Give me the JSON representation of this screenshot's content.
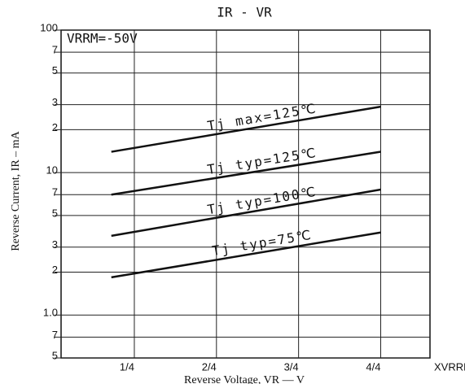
{
  "chart_data": {
    "type": "line",
    "title": "IR - VR",
    "x_label": "Reverse Voltage, VR — V",
    "y_label": "Reverse Current, IR – mA",
    "x_unit": "XVRRM",
    "annotation": "VRRM=-50V",
    "log_y": true,
    "grid": true,
    "xlim": [
      0.027,
      1.15
    ],
    "ylim": [
      0.5,
      100
    ],
    "xticks": [
      {
        "value": 0.25,
        "label": "1/4"
      },
      {
        "value": 0.5,
        "label": "2/4"
      },
      {
        "value": 0.75,
        "label": "3/4"
      },
      {
        "value": 1,
        "label": "4/4"
      }
    ],
    "yticks": [
      100,
      {
        "value": 70,
        "label": "7"
      },
      {
        "value": 50,
        "label": "5"
      },
      {
        "value": 30,
        "label": "3"
      },
      {
        "value": 20,
        "label": "2"
      },
      10,
      {
        "value": 7,
        "label": "7"
      },
      {
        "value": 5,
        "label": "5"
      },
      {
        "value": 3,
        "label": "3"
      },
      {
        "value": 2,
        "label": "2"
      },
      {
        "value": 1,
        "label": "1.0"
      },
      {
        "value": 0.7,
        "label": "7"
      },
      {
        "value": 0.5,
        "label": "5"
      }
    ],
    "series": [
      {
        "name": "Tj max=125℃",
        "color": "#111111",
        "x": [
          0.18,
          1
        ],
        "values": [
          14,
          29
        ]
      },
      {
        "name": "Tj typ=125℃",
        "color": "#111111",
        "x": [
          0.18,
          1
        ],
        "values": [
          7,
          14
        ]
      },
      {
        "name": "Tj typ=100℃",
        "color": "#111111",
        "x": [
          0.18,
          1
        ],
        "values": [
          3.6,
          7.6
        ]
      },
      {
        "name": "Tj typ=75℃",
        "color": "#111111",
        "x": [
          0.18,
          1
        ],
        "values": [
          1.84,
          3.8
        ]
      }
    ]
  }
}
